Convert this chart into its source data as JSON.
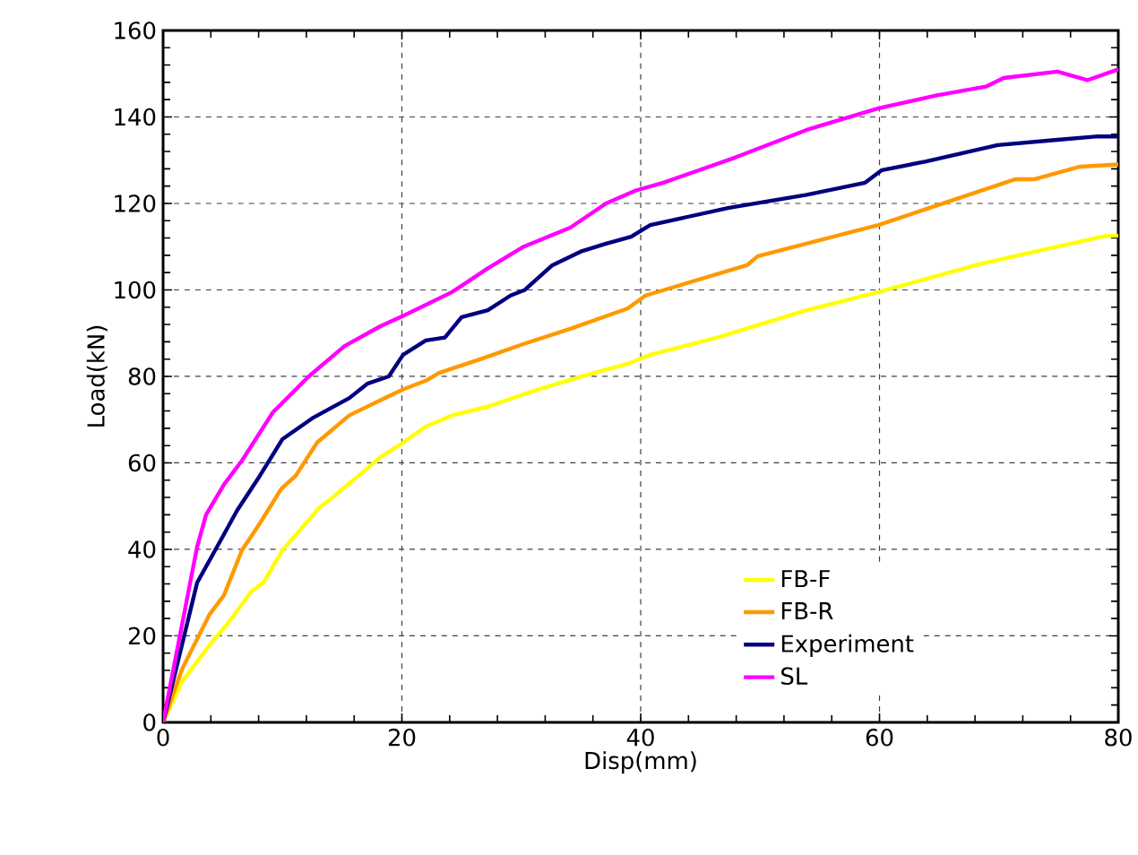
{
  "chart_data": {
    "type": "line",
    "xlabel": "Disp(mm)",
    "ylabel": "Load(kN)",
    "xlim": [
      0,
      80
    ],
    "xticks": [
      0,
      20,
      40,
      60,
      80
    ],
    "ylim": [
      0,
      160
    ],
    "yticks": [
      0,
      20,
      40,
      60,
      80,
      100,
      120,
      140,
      160
    ],
    "grid": true,
    "legend": "bottom right",
    "marker": "none",
    "line_style": "solid",
    "series": [
      {
        "name": "FB-F",
        "color": "#ffff00",
        "x": [
          0,
          1.6,
          4.1,
          5.4,
          7.4,
          8.4,
          10,
          13.1,
          14.1,
          16.1,
          18.2,
          20.1,
          22,
          24.2,
          27.2,
          31.1,
          35.1,
          38.9,
          40.8,
          46.4,
          53.9,
          59.9,
          68.4,
          74.9,
          79,
          80
        ],
        "values": [
          0,
          9.5,
          18.6,
          22.8,
          30.3,
          32.3,
          39.8,
          49.7,
          51.8,
          56.4,
          61.3,
          64.7,
          68.4,
          71,
          73,
          76.7,
          80,
          82.9,
          85,
          89,
          95.3,
          99.5,
          106,
          110,
          112.5,
          112.5
        ]
      },
      {
        "name": "FB-R",
        "color": "#ff9900",
        "x": [
          0,
          1.6,
          3.9,
          5.1,
          6.6,
          8.1,
          9.9,
          11.1,
          12.9,
          15.6,
          18.6,
          20.1,
          22,
          23.1,
          26.6,
          30.2,
          34.1,
          38.9,
          40.4,
          48.9,
          49.8,
          59.9,
          71.4,
          73,
          76.8,
          80
        ],
        "values": [
          0,
          12.4,
          25,
          29.4,
          39.8,
          46,
          54,
          57,
          64.7,
          71,
          75,
          77,
          79,
          80.8,
          84,
          87.5,
          91,
          95.7,
          98.7,
          105.7,
          107.8,
          115,
          125.6,
          125.6,
          128.5,
          129
        ]
      },
      {
        "name": "Experiment",
        "color": "#000080",
        "x": [
          0,
          2.85,
          4.1,
          6.2,
          8.1,
          10,
          12.6,
          15.6,
          17.1,
          18.9,
          20.1,
          22,
          23.6,
          25,
          27.2,
          29.1,
          30.3,
          32.6,
          35.1,
          37.1,
          39.2,
          40.8,
          47.4,
          53.9,
          58.8,
          60.2,
          63.9,
          69.9,
          74.9,
          78.3,
          80
        ],
        "values": [
          0,
          32.3,
          38.5,
          49,
          57,
          65.5,
          70.5,
          75,
          78.3,
          80,
          85,
          88.3,
          89,
          93.7,
          95.3,
          98.7,
          100,
          105.7,
          109,
          110.7,
          112.3,
          115,
          119,
          122,
          124.8,
          127.7,
          129.7,
          133.5,
          134.7,
          135.5,
          135.5
        ]
      },
      {
        "name": "SL",
        "color": "#ff00ff",
        "x": [
          0,
          2.85,
          3.6,
          5.1,
          6.6,
          9.2,
          12.2,
          15.2,
          18.2,
          20.1,
          24.2,
          27.2,
          30.2,
          34.1,
          37.1,
          39.6,
          41.9,
          47.9,
          53.9,
          59.9,
          64.8,
          68.9,
          70.4,
          74.9,
          77.4,
          80
        ],
        "values": [
          0,
          40.6,
          48,
          55,
          60.5,
          71.7,
          80,
          87,
          91.6,
          94,
          99.5,
          105,
          110,
          114.4,
          120,
          123,
          124.8,
          130.6,
          137,
          142,
          145,
          147,
          149,
          150.5,
          148.5,
          151
        ]
      }
    ]
  }
}
